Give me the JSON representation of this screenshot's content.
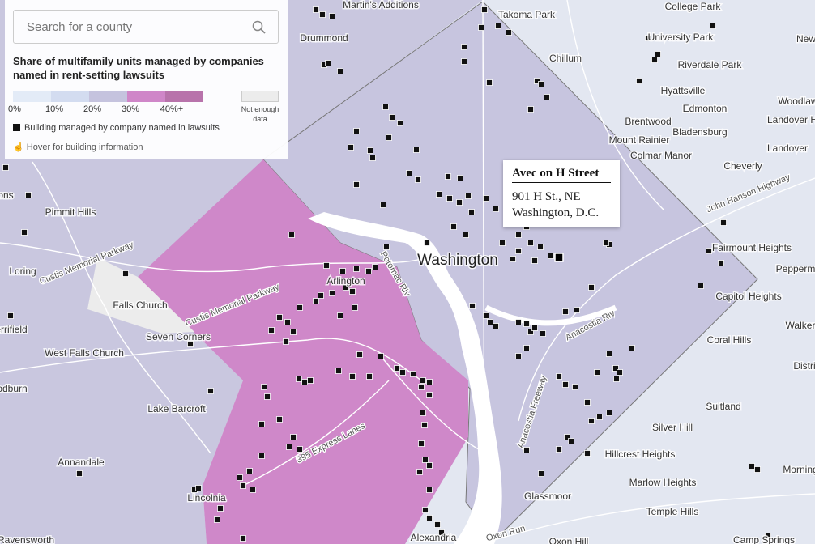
{
  "search": {
    "placeholder": "Search for a county"
  },
  "legend": {
    "title": "Share of multifamily units managed by companies named in rent-setting lawsuits",
    "scale_labels": [
      "0%",
      "10%",
      "20%",
      "30%",
      "40%+"
    ],
    "no_data": "Not enough data",
    "building_key": "Building managed by company named in lawsuits",
    "hover_hint": "Hover for building information"
  },
  "tooltip": {
    "name": "Avec on H Street",
    "address": "901 H St., NE",
    "city": "Washington, D.C."
  },
  "places": [
    "Martin's Additions",
    "Takoma Park",
    "College Park",
    "Drummond",
    "University Park",
    "New",
    "Chillum",
    "Riverdale Park",
    "Hyattsville",
    "Edmonton",
    "Woodlaw",
    "Brentwood",
    "Bladensburg",
    "Landover H",
    "Mount Rainier",
    "Colmar Manor",
    "Landover",
    "Cheverly",
    "Pimmit Hills",
    "Washington",
    "Fairmount Heights",
    "Pepperm",
    "Loring",
    "Arlington",
    "Capitol Heights",
    "Falls Church",
    "Seven Corners",
    "Walker",
    "Coral Hills",
    "West Falls Church",
    "Distri",
    "Lake Barcroft",
    "Suitland",
    "Silver Hill",
    "Hillcrest Heights",
    "Annandale",
    "Morning",
    "Marlow Heights",
    "Lincolnia",
    "Glassmoor",
    "Temple Hills",
    "Alexandria",
    "Oxon Hill",
    "Camp Springs",
    "Ravensworth",
    "errifield",
    "odburn",
    "ons"
  ],
  "roads": [
    "Custis Memorial Parkway",
    "Custis Memorial Parkway",
    "John Hanson Highway",
    "Anacostia Freeway",
    "Anacostia Riv",
    "395 Express Lanes",
    "Oxon Run",
    "Potomac Riv"
  ]
}
